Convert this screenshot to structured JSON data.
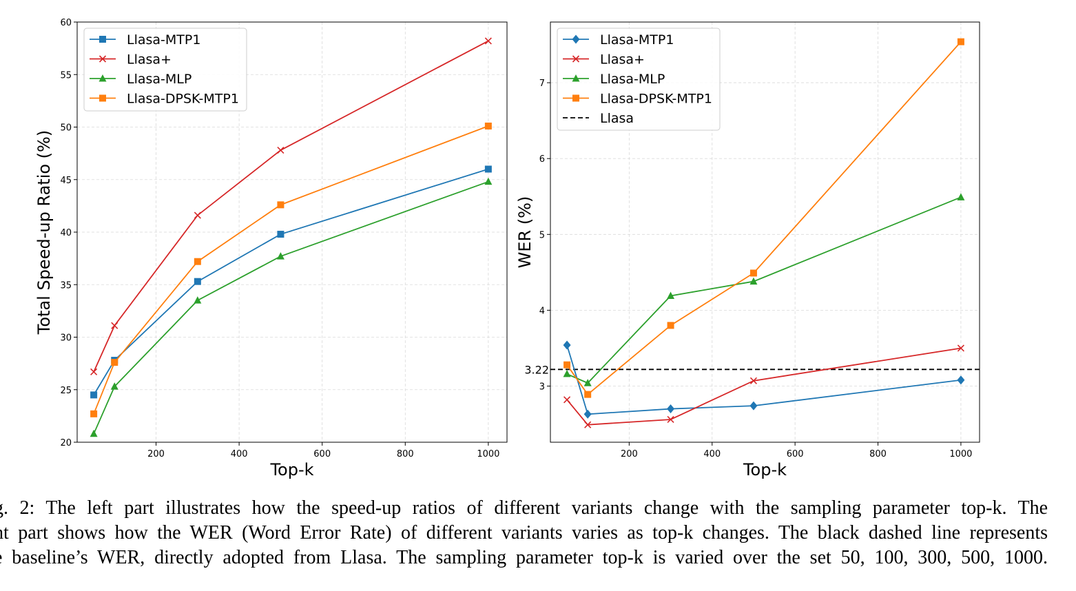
{
  "chart_data": [
    {
      "type": "line",
      "xlabel": "Top-k",
      "ylabel": "Total Speed-up Ratio (%)",
      "xlim": [
        10,
        1045
      ],
      "ylim": [
        20,
        60
      ],
      "xticks": [
        200,
        400,
        600,
        800,
        1000
      ],
      "yticks": [
        20,
        25,
        30,
        35,
        40,
        45,
        50,
        55,
        60
      ],
      "grid": true,
      "legend_position": "upper-left",
      "x": [
        50,
        100,
        300,
        500,
        1000
      ],
      "series": [
        {
          "name": "Llasa-MTP1",
          "color": "#1f77b4",
          "marker": "square",
          "values": [
            24.5,
            27.8,
            35.3,
            39.8,
            46.0
          ]
        },
        {
          "name": "Llasa+",
          "color": "#d62728",
          "marker": "x",
          "values": [
            26.7,
            31.1,
            41.6,
            47.8,
            58.2
          ]
        },
        {
          "name": "Llasa-MLP",
          "color": "#2ca02c",
          "marker": "triangle",
          "values": [
            20.8,
            25.3,
            33.5,
            37.7,
            44.8
          ]
        },
        {
          "name": "Llasa-DPSK-MTP1",
          "color": "#ff7f0e",
          "marker": "square",
          "values": [
            22.7,
            27.6,
            37.2,
            42.6,
            50.1
          ]
        }
      ]
    },
    {
      "type": "line",
      "xlabel": "Top-k",
      "ylabel": "WER (%)",
      "xlim": [
        10,
        1045
      ],
      "ylim": [
        2.26,
        7.8
      ],
      "xticks": [
        200,
        400,
        600,
        800,
        1000
      ],
      "yticks": [
        3,
        4,
        5,
        6,
        7
      ],
      "grid": true,
      "legend_position": "upper-left",
      "x": [
        50,
        100,
        300,
        500,
        1000
      ],
      "series": [
        {
          "name": "Llasa-MTP1",
          "color": "#1f77b4",
          "marker": "diamond",
          "values": [
            3.54,
            2.63,
            2.7,
            2.74,
            3.08
          ]
        },
        {
          "name": "Llasa+",
          "color": "#d62728",
          "marker": "x",
          "values": [
            2.82,
            2.49,
            2.56,
            3.07,
            3.5
          ]
        },
        {
          "name": "Llasa-MLP",
          "color": "#2ca02c",
          "marker": "triangle",
          "values": [
            3.16,
            3.04,
            4.19,
            4.38,
            5.49
          ]
        },
        {
          "name": "Llasa-DPSK-MTP1",
          "color": "#ff7f0e",
          "marker": "square",
          "values": [
            3.28,
            2.89,
            3.8,
            4.49,
            7.54
          ]
        }
      ],
      "reference_line": {
        "name": "Llasa",
        "value": 3.22,
        "label": "3.22",
        "color": "#000000",
        "style": "dashed"
      }
    }
  ],
  "caption": {
    "lines": [
      "g. 2: The left part illustrates how the speed-up ratios of different variants change with the sampling parameter top-k. The",
      "ht part shows how the WER (Word Error Rate) of different variants varies as top-k changes. The black dashed line represents",
      "e baseline’s WER, directly adopted from Llasa. The sampling parameter top-k is varied over the set 50, 100, 300, 500, 1000."
    ]
  }
}
